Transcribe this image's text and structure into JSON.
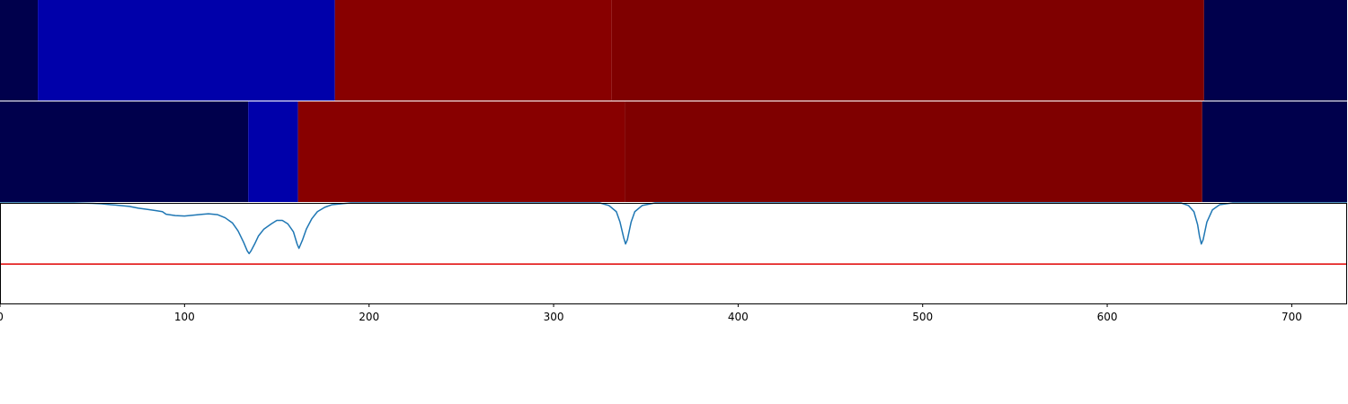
{
  "chart_data": {
    "type": "heatmap",
    "x_range": [
      0,
      730
    ],
    "x_ticks": [
      0,
      100,
      200,
      300,
      400,
      500,
      600,
      700
    ],
    "segment_rows": [
      {
        "segments": [
          {
            "start": 0,
            "end": 20.5,
            "color": "#00004c"
          },
          {
            "start": 20.5,
            "end": 181.5,
            "color": "#0000aa"
          },
          {
            "start": 181.5,
            "end": 331.5,
            "color": "#880000"
          },
          {
            "start": 331.5,
            "end": 652.5,
            "color": "#7f0000"
          },
          {
            "start": 652.5,
            "end": 730,
            "color": "#00004c"
          }
        ]
      },
      {
        "segments": [
          {
            "start": 0,
            "end": 134.5,
            "color": "#00004c"
          },
          {
            "start": 134.5,
            "end": 161.5,
            "color": "#0000aa"
          },
          {
            "start": 161.5,
            "end": 338.5,
            "color": "#880000"
          },
          {
            "start": 338.5,
            "end": 651.5,
            "color": "#7f0000"
          },
          {
            "start": 651.5,
            "end": 730,
            "color": "#00004c"
          }
        ]
      }
    ],
    "line_panel": {
      "y_range": [
        -1.15,
        0
      ],
      "threshold": -0.7,
      "threshold_color": "#e00000",
      "line_color": "#1f77b4",
      "points": [
        [
          0,
          0
        ],
        [
          40,
          0
        ],
        [
          50,
          -0.005
        ],
        [
          55,
          -0.01
        ],
        [
          60,
          -0.02
        ],
        [
          65,
          -0.03
        ],
        [
          70,
          -0.04
        ],
        [
          75,
          -0.06
        ],
        [
          80,
          -0.075
        ],
        [
          85,
          -0.09
        ],
        [
          88,
          -0.1
        ],
        [
          90,
          -0.13
        ],
        [
          95,
          -0.145
        ],
        [
          100,
          -0.15
        ],
        [
          105,
          -0.14
        ],
        [
          110,
          -0.13
        ],
        [
          113,
          -0.125
        ],
        [
          118,
          -0.135
        ],
        [
          122,
          -0.17
        ],
        [
          126,
          -0.23
        ],
        [
          129,
          -0.32
        ],
        [
          132,
          -0.45
        ],
        [
          134,
          -0.55
        ],
        [
          135,
          -0.58
        ],
        [
          136,
          -0.55
        ],
        [
          138,
          -0.47
        ],
        [
          140,
          -0.38
        ],
        [
          143,
          -0.3
        ],
        [
          147,
          -0.24
        ],
        [
          150,
          -0.2
        ],
        [
          153,
          -0.2
        ],
        [
          156,
          -0.24
        ],
        [
          159,
          -0.33
        ],
        [
          161,
          -0.47
        ],
        [
          162,
          -0.52
        ],
        [
          164,
          -0.42
        ],
        [
          166,
          -0.3
        ],
        [
          169,
          -0.18
        ],
        [
          172,
          -0.1
        ],
        [
          176,
          -0.05
        ],
        [
          180,
          -0.02
        ],
        [
          185,
          -0.01
        ],
        [
          190,
          0
        ],
        [
          325,
          0
        ],
        [
          330,
          -0.03
        ],
        [
          334,
          -0.1
        ],
        [
          336,
          -0.22
        ],
        [
          338,
          -0.4
        ],
        [
          339,
          -0.47
        ],
        [
          340,
          -0.42
        ],
        [
          342,
          -0.22
        ],
        [
          344,
          -0.1
        ],
        [
          348,
          -0.03
        ],
        [
          355,
          0
        ],
        [
          640,
          0
        ],
        [
          644,
          -0.03
        ],
        [
          647,
          -0.1
        ],
        [
          649,
          -0.25
        ],
        [
          650,
          -0.38
        ],
        [
          651,
          -0.47
        ],
        [
          652,
          -0.42
        ],
        [
          654,
          -0.22
        ],
        [
          657,
          -0.08
        ],
        [
          661,
          -0.02
        ],
        [
          668,
          0
        ],
        [
          730,
          0
        ]
      ]
    }
  }
}
